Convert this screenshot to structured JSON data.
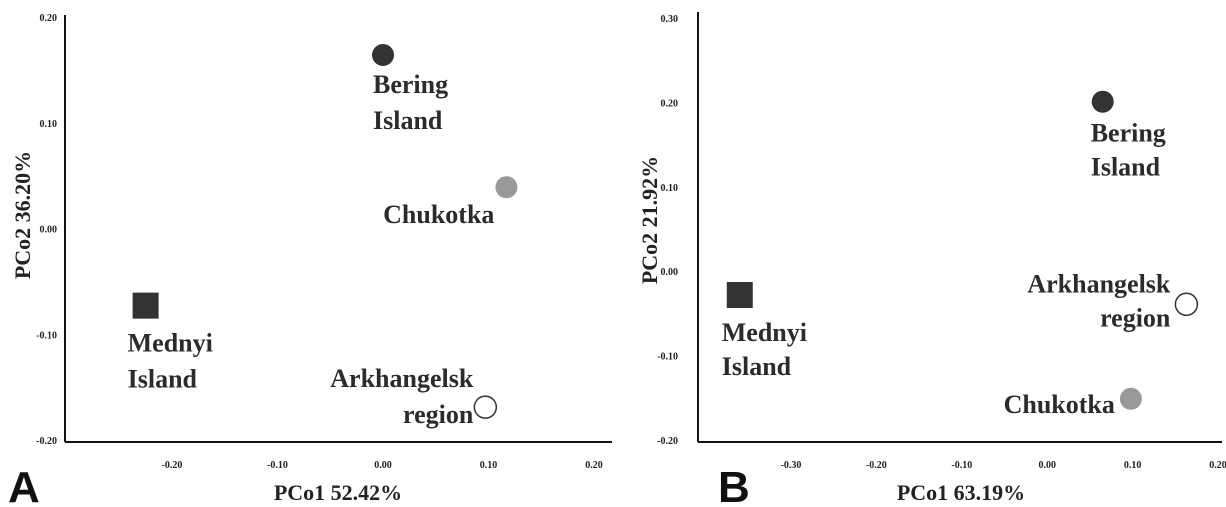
{
  "chart_data": [
    {
      "type": "scatter",
      "panel_label": "A",
      "xlabel": "PCo1 52.42%",
      "ylabel": "PCo2 36.20%",
      "xlim": [
        -0.3,
        0.2
      ],
      "ylim": [
        -0.2,
        0.2
      ],
      "xticks": [
        "-0.20",
        "-0.10",
        "0.00",
        "0.10",
        "0.20"
      ],
      "yticks": [
        "0.20",
        "0.10",
        "0.00",
        "-0.10",
        "-0.20"
      ],
      "points": [
        {
          "label": [
            "Bering",
            "Island"
          ],
          "x": 0.0,
          "y": 0.165,
          "marker": "circle",
          "fill": "#333333",
          "label_pos": "below"
        },
        {
          "label": [
            "Chukotka"
          ],
          "x": 0.117,
          "y": 0.04,
          "marker": "circle",
          "fill": "#999999",
          "label_pos": "left"
        },
        {
          "label": [
            "Mednyi",
            "Island"
          ],
          "x": -0.225,
          "y": -0.072,
          "marker": "square",
          "fill": "#333333",
          "label_pos": "below"
        },
        {
          "label": [
            "Arkhangelsk",
            "region"
          ],
          "x": 0.097,
          "y": -0.168,
          "marker": "circle",
          "fill": "#ffffff",
          "label_pos": "left"
        }
      ]
    },
    {
      "type": "scatter",
      "panel_label": "B",
      "xlabel": "PCo1 63.19%",
      "ylabel": "PCo2 21.92%",
      "xlim": [
        -0.4,
        0.2
      ],
      "ylim": [
        -0.2,
        0.3
      ],
      "xticks": [
        "-0.30",
        "-0.20",
        "-0.10",
        "0.00",
        "0.10",
        "0.20"
      ],
      "yticks": [
        "0.30",
        "0.20",
        "0.10",
        "0.00",
        "-0.10",
        "-0.20"
      ],
      "points": [
        {
          "label": [
            "Bering",
            "Island"
          ],
          "x": 0.065,
          "y": 0.202,
          "marker": "circle",
          "fill": "#333333",
          "label_pos": "below"
        },
        {
          "label": [
            "Arkhangelsk",
            "region"
          ],
          "x": 0.163,
          "y": -0.038,
          "marker": "circle",
          "fill": "#ffffff",
          "label_pos": "left"
        },
        {
          "label": [
            "Mednyi",
            "Island"
          ],
          "x": -0.36,
          "y": -0.027,
          "marker": "square",
          "fill": "#333333",
          "label_pos": "below"
        },
        {
          "label": [
            "Chukotka"
          ],
          "x": 0.098,
          "y": -0.15,
          "marker": "circle",
          "fill": "#999999",
          "label_pos": "left"
        }
      ]
    }
  ]
}
